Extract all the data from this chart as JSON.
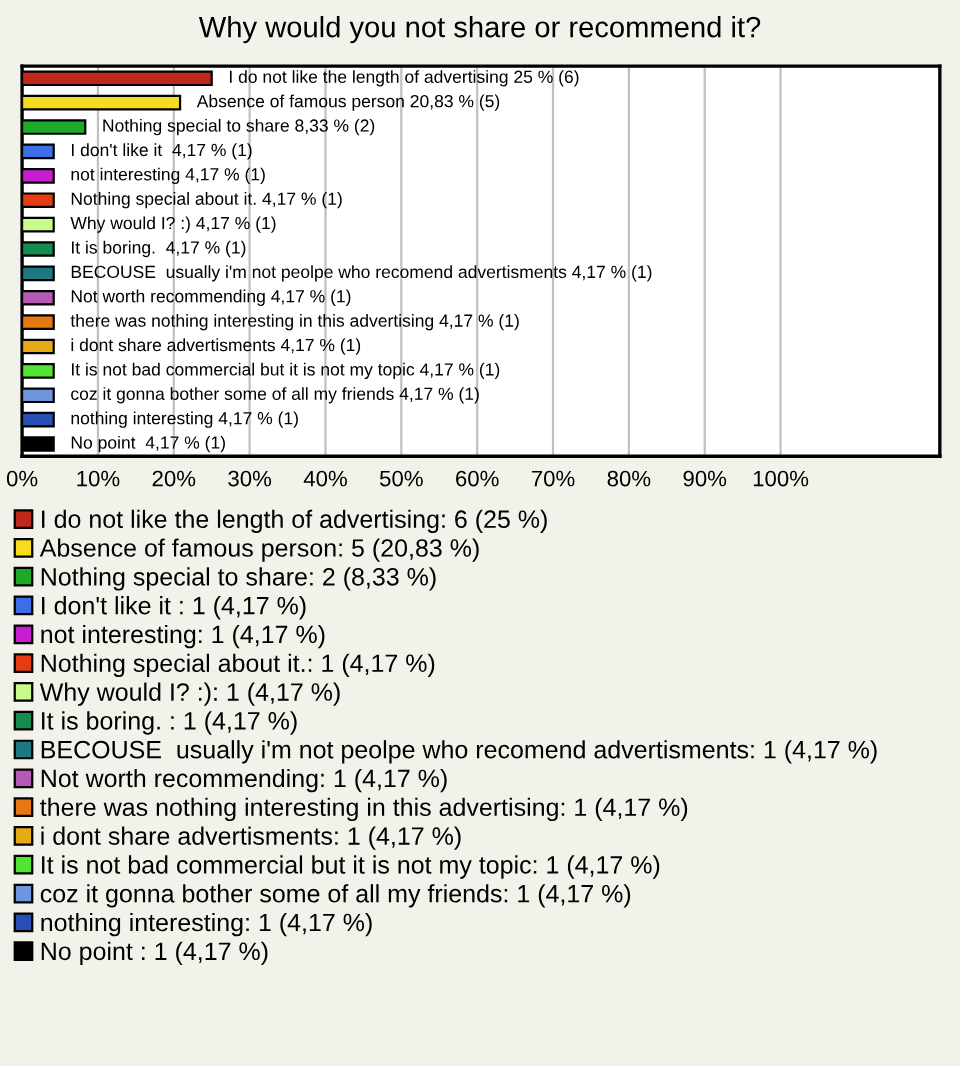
{
  "chart_data": {
    "type": "bar",
    "orientation": "horizontal",
    "title": "Why would you not share or recommend it?",
    "categories": [
      null,
      null,
      null,
      null,
      null,
      null,
      null,
      null,
      null,
      null,
      null,
      null,
      null,
      null,
      null,
      null
    ],
    "series": [
      {
        "name": "I do not like the length of advertising: 6 (25 %)",
        "color": "#c0281c",
        "values": [
          25,
          null,
          null,
          null,
          null,
          null,
          null,
          null,
          null,
          null,
          null,
          null,
          null,
          null,
          null,
          null
        ],
        "value_labels": [
          "I do not like the length of advertising 25 % (6)",
          null,
          null,
          null,
          null,
          null,
          null,
          null,
          null,
          null,
          null,
          null,
          null,
          null,
          null,
          null
        ]
      },
      {
        "name": "Absence of famous person: 5 (20,83 %)",
        "color": "#f5dc1e",
        "values": [
          null,
          20.83,
          null,
          null,
          null,
          null,
          null,
          null,
          null,
          null,
          null,
          null,
          null,
          null,
          null,
          null
        ],
        "value_labels": [
          null,
          "Absence of famous person 20,83 % (5)",
          null,
          null,
          null,
          null,
          null,
          null,
          null,
          null,
          null,
          null,
          null,
          null,
          null,
          null
        ]
      },
      {
        "name": "Nothing special to share: 2 (8,33 %)",
        "color": "#1eaa28",
        "values": [
          null,
          null,
          8.33,
          null,
          null,
          null,
          null,
          null,
          null,
          null,
          null,
          null,
          null,
          null,
          null,
          null
        ],
        "value_labels": [
          null,
          null,
          "Nothing special to share 8,33 % (2)",
          null,
          null,
          null,
          null,
          null,
          null,
          null,
          null,
          null,
          null,
          null,
          null,
          null
        ]
      },
      {
        "name": "I don't like it : 1 (4,17 %)",
        "color": "#3c6ee6",
        "values": [
          null,
          null,
          null,
          4.17,
          null,
          null,
          null,
          null,
          null,
          null,
          null,
          null,
          null,
          null,
          null,
          null
        ],
        "value_labels": [
          null,
          null,
          null,
          "I don't like it  4,17 % (1)",
          null,
          null,
          null,
          null,
          null,
          null,
          null,
          null,
          null,
          null,
          null,
          null
        ]
      },
      {
        "name": "not interesting: 1 (4,17 %)",
        "color": "#c81ed2",
        "values": [
          null,
          null,
          null,
          null,
          4.17,
          null,
          null,
          null,
          null,
          null,
          null,
          null,
          null,
          null,
          null,
          null
        ],
        "value_labels": [
          null,
          null,
          null,
          null,
          "not interesting 4,17 % (1)",
          null,
          null,
          null,
          null,
          null,
          null,
          null,
          null,
          null,
          null,
          null
        ]
      },
      {
        "name": "Nothing special about it.: 1 (4,17 %)",
        "color": "#e63c14",
        "values": [
          null,
          null,
          null,
          null,
          null,
          4.17,
          null,
          null,
          null,
          null,
          null,
          null,
          null,
          null,
          null,
          null
        ],
        "value_labels": [
          null,
          null,
          null,
          null,
          null,
          "Nothing special about it. 4,17 % (1)",
          null,
          null,
          null,
          null,
          null,
          null,
          null,
          null,
          null,
          null
        ]
      },
      {
        "name": "Why would I? :): 1 (4,17 %)",
        "color": "#c8fa8c",
        "values": [
          null,
          null,
          null,
          null,
          null,
          null,
          4.17,
          null,
          null,
          null,
          null,
          null,
          null,
          null,
          null,
          null
        ],
        "value_labels": [
          null,
          null,
          null,
          null,
          null,
          null,
          "Why would I? :) 4,17 % (1)",
          null,
          null,
          null,
          null,
          null,
          null,
          null,
          null,
          null
        ]
      },
      {
        "name": "It is boring. : 1 (4,17 %)",
        "color": "#148c50",
        "values": [
          null,
          null,
          null,
          null,
          null,
          null,
          null,
          4.17,
          null,
          null,
          null,
          null,
          null,
          null,
          null,
          null
        ],
        "value_labels": [
          null,
          null,
          null,
          null,
          null,
          null,
          null,
          "It is boring.  4,17 % (1)",
          null,
          null,
          null,
          null,
          null,
          null,
          null,
          null
        ]
      },
      {
        "name": "BECOUSE  usually i'm not peolpe who recomend advertisments: 1 (4,17 %)",
        "color": "#1e7882",
        "values": [
          null,
          null,
          null,
          null,
          null,
          null,
          null,
          null,
          4.17,
          null,
          null,
          null,
          null,
          null,
          null,
          null
        ],
        "value_labels": [
          null,
          null,
          null,
          null,
          null,
          null,
          null,
          null,
          "BECOUSE  usually i'm not peolpe who recomend advertisments 4,17 % (1)",
          null,
          null,
          null,
          null,
          null,
          null,
          null
        ]
      },
      {
        "name": "Not worth recommending: 1 (4,17 %)",
        "color": "#b45ab4",
        "values": [
          null,
          null,
          null,
          null,
          null,
          null,
          null,
          null,
          null,
          4.17,
          null,
          null,
          null,
          null,
          null,
          null
        ],
        "value_labels": [
          null,
          null,
          null,
          null,
          null,
          null,
          null,
          null,
          null,
          "Not worth recommending 4,17 % (1)",
          null,
          null,
          null,
          null,
          null,
          null
        ]
      },
      {
        "name": "there was nothing interesting in this advertising: 1 (4,17 %)",
        "color": "#e67814",
        "values": [
          null,
          null,
          null,
          null,
          null,
          null,
          null,
          null,
          null,
          null,
          4.17,
          null,
          null,
          null,
          null,
          null
        ],
        "value_labels": [
          null,
          null,
          null,
          null,
          null,
          null,
          null,
          null,
          null,
          null,
          "there was nothing interesting in this advertising 4,17 % (1)",
          null,
          null,
          null,
          null,
          null
        ]
      },
      {
        "name": "i dont share advertisments: 1 (4,17 %)",
        "color": "#e6aa14",
        "values": [
          null,
          null,
          null,
          null,
          null,
          null,
          null,
          null,
          null,
          null,
          null,
          4.17,
          null,
          null,
          null,
          null
        ],
        "value_labels": [
          null,
          null,
          null,
          null,
          null,
          null,
          null,
          null,
          null,
          null,
          null,
          "i dont share advertisments 4,17 % (1)",
          null,
          null,
          null,
          null
        ]
      },
      {
        "name": "It is not bad commercial but it is not my topic: 1 (4,17 %)",
        "color": "#50e632",
        "values": [
          null,
          null,
          null,
          null,
          null,
          null,
          null,
          null,
          null,
          null,
          null,
          null,
          4.17,
          null,
          null,
          null
        ],
        "value_labels": [
          null,
          null,
          null,
          null,
          null,
          null,
          null,
          null,
          null,
          null,
          null,
          null,
          "It is not bad commercial but it is not my topic 4,17 % (1)",
          null,
          null,
          null
        ]
      },
      {
        "name": "coz it gonna bother some of all my friends: 1 (4,17 %)",
        "color": "#6e96dc",
        "values": [
          null,
          null,
          null,
          null,
          null,
          null,
          null,
          null,
          null,
          null,
          null,
          null,
          null,
          4.17,
          null,
          null
        ],
        "value_labels": [
          null,
          null,
          null,
          null,
          null,
          null,
          null,
          null,
          null,
          null,
          null,
          null,
          null,
          "coz it gonna bother some of all my friends 4,17 % (1)",
          null,
          null
        ]
      },
      {
        "name": "nothing interesting: 1 (4,17 %)",
        "color": "#2850b4",
        "values": [
          null,
          null,
          null,
          null,
          null,
          null,
          null,
          null,
          null,
          null,
          null,
          null,
          null,
          null,
          4.17,
          null
        ],
        "value_labels": [
          null,
          null,
          null,
          null,
          null,
          null,
          null,
          null,
          null,
          null,
          null,
          null,
          null,
          null,
          "nothing interesting 4,17 % (1)",
          null
        ]
      },
      {
        "name": "No point : 1 (4,17 %)",
        "color": "#000000",
        "values": [
          null,
          null,
          null,
          null,
          null,
          null,
          null,
          null,
          null,
          null,
          null,
          null,
          null,
          null,
          null,
          4.17
        ],
        "value_labels": [
          null,
          null,
          null,
          null,
          null,
          null,
          null,
          null,
          null,
          null,
          null,
          null,
          null,
          null,
          null,
          "No point  4,17 % (1)"
        ]
      }
    ],
    "xlim": [
      0,
      121
    ],
    "xticks": [
      {
        "value": 0,
        "label": "0%"
      },
      {
        "value": 10,
        "label": "10%"
      },
      {
        "value": 20,
        "label": "20%"
      },
      {
        "value": 30,
        "label": "30%"
      },
      {
        "value": 40,
        "label": "40%"
      },
      {
        "value": 50,
        "label": "50%"
      },
      {
        "value": 60,
        "label": "60%"
      },
      {
        "value": 70,
        "label": "70%"
      },
      {
        "value": 80,
        "label": "80%"
      },
      {
        "value": 90,
        "label": "90%"
      },
      {
        "value": 100,
        "label": "100%"
      }
    ],
    "grid": "x",
    "legend": "bottom",
    "tick_labels": "x"
  }
}
